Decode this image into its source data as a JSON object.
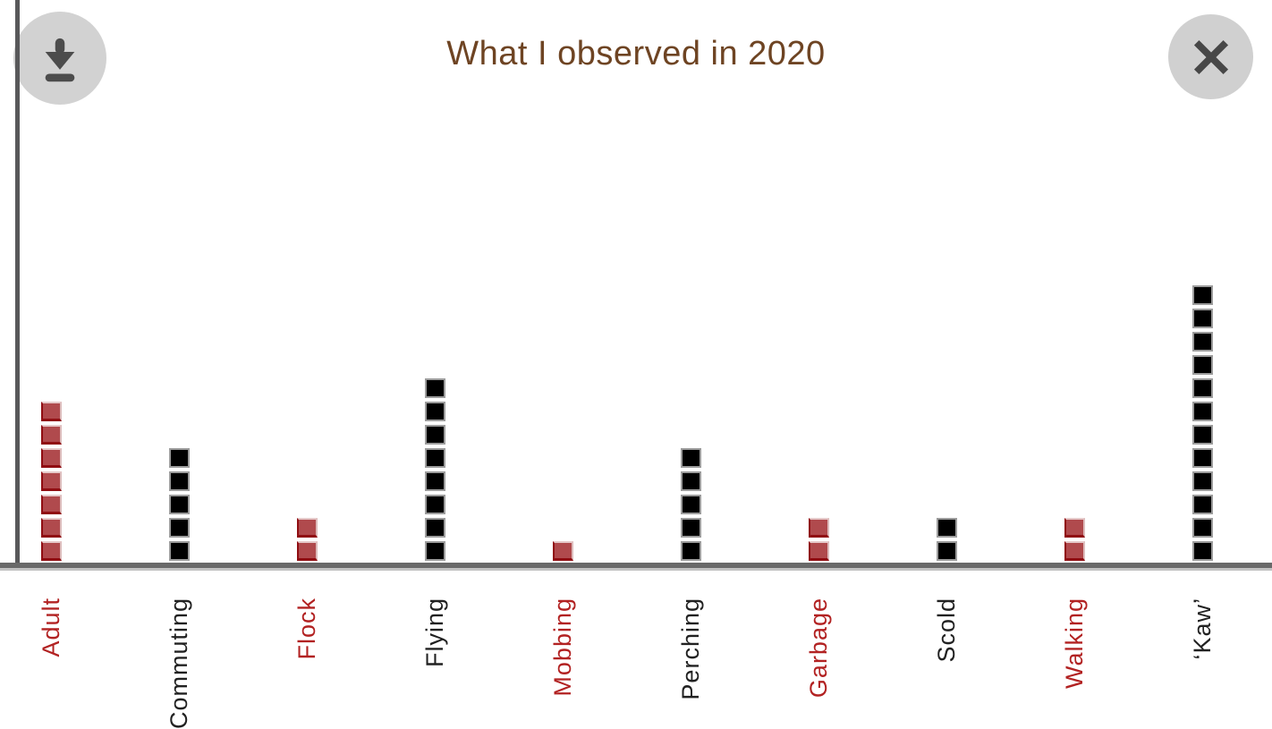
{
  "header": {
    "title": "What I observed in 2020",
    "title_color": "#6e4423",
    "download_button": {
      "icon": "download-icon"
    },
    "close_button": {
      "icon": "close-icon"
    }
  },
  "chart_data": {
    "type": "bar",
    "style": "waffle-unit-squares",
    "title": "What I observed in 2020",
    "categories": [
      "Adult",
      "Commuting",
      "Flock",
      "Flying",
      "Mobbing",
      "Perching",
      "Garbage",
      "Scold",
      "Walking",
      "‘Kaw’"
    ],
    "values": [
      7,
      5,
      2,
      8,
      1,
      5,
      2,
      2,
      2,
      12
    ],
    "category_colors": [
      "red",
      "black",
      "red",
      "black",
      "red",
      "black",
      "red",
      "black",
      "red",
      "black"
    ],
    "palette": {
      "red_square": "#b04a4d",
      "red_square_edge": "#900d12",
      "black_square": "#000000",
      "red_label": "#b22222",
      "black_label": "#212121"
    },
    "xlabel": "",
    "ylabel": "",
    "legend": "none",
    "grid": false,
    "ylim": [
      0,
      12
    ]
  }
}
